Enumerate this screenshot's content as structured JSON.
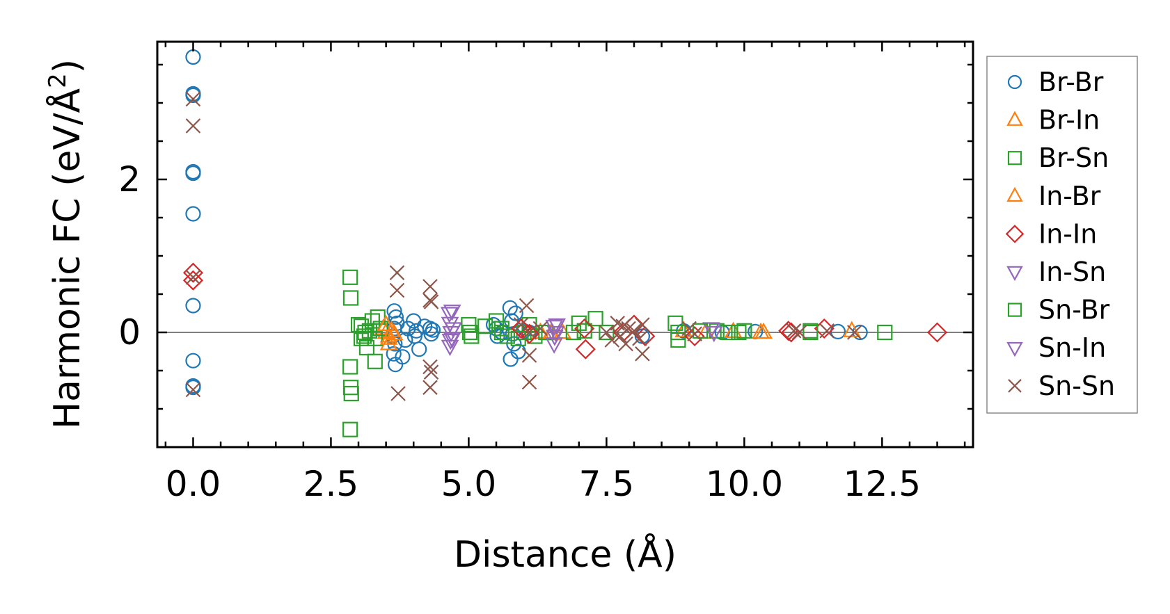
{
  "chart_data": {
    "type": "scatter",
    "xlabel": "Distance (Å)",
    "ylabel_main": "Harmonic FC (eV/Å",
    "ylabel_sup": "2",
    "ylabel_tail": ")",
    "xlim": [
      -0.65,
      14.15
    ],
    "ylim": [
      -1.5,
      3.8
    ],
    "xticks": [
      0.0,
      2.5,
      5.0,
      7.5,
      10.0,
      12.5
    ],
    "xtick_labels": [
      "0.0",
      "2.5",
      "5.0",
      "7.5",
      "10.0",
      "12.5"
    ],
    "yticks": [
      0,
      2
    ],
    "ytick_labels": [
      "0",
      "2"
    ],
    "zero_line": true,
    "grid": false,
    "legend_position": "right-outside",
    "series": [
      {
        "name": "Br-Br",
        "marker": "circle",
        "color": "#1f77b4",
        "points": [
          [
            0,
            3.6
          ],
          [
            0,
            3.12
          ],
          [
            0,
            3.1
          ],
          [
            0,
            2.1
          ],
          [
            0,
            2.08
          ],
          [
            0,
            1.55
          ],
          [
            0,
            0.35
          ],
          [
            0,
            -0.37
          ],
          [
            0,
            -0.7
          ],
          [
            0,
            -0.72
          ],
          [
            3.65,
            0.28
          ],
          [
            3.68,
            0.2
          ],
          [
            3.7,
            0.12
          ],
          [
            3.65,
            0.05
          ],
          [
            3.62,
            -0.05
          ],
          [
            3.66,
            -0.15
          ],
          [
            3.64,
            -0.28
          ],
          [
            3.67,
            -0.42
          ],
          [
            3.8,
            -0.32
          ],
          [
            3.85,
            -0.1
          ],
          [
            3.9,
            0.05
          ],
          [
            4.0,
            0.15
          ],
          [
            4.02,
            -0.05
          ],
          [
            4.05,
            0.02
          ],
          [
            4.1,
            -0.22
          ],
          [
            4.2,
            0.08
          ],
          [
            4.3,
            0.05
          ],
          [
            4.32,
            -0.02
          ],
          [
            4.35,
            0.03
          ],
          [
            5.45,
            0.1
          ],
          [
            5.5,
            0.05
          ],
          [
            5.52,
            -0.05
          ],
          [
            5.6,
            0.0
          ],
          [
            5.75,
            0.32
          ],
          [
            5.78,
            0.15
          ],
          [
            5.8,
            -0.02
          ],
          [
            5.82,
            -0.15
          ],
          [
            5.76,
            -0.35
          ],
          [
            5.85,
            0.25
          ],
          [
            5.9,
            -0.25
          ],
          [
            6.0,
            0.02
          ],
          [
            6.1,
            0.0
          ],
          [
            8.15,
            -0.05
          ],
          [
            8.9,
            0.02
          ],
          [
            9.6,
            0.0
          ],
          [
            10.2,
            0.01
          ],
          [
            11.7,
            0.01
          ],
          [
            12.1,
            0.0
          ]
        ]
      },
      {
        "name": "Br-In",
        "marker": "triangle-up",
        "color": "#ff7f0e",
        "points": [
          [
            3.45,
            0.05
          ],
          [
            3.5,
            0.0
          ],
          [
            3.55,
            -0.05
          ],
          [
            3.6,
            0.02
          ],
          [
            3.65,
            -0.02
          ],
          [
            3.55,
            -0.15
          ],
          [
            6.3,
            0.0
          ],
          [
            6.5,
            -0.02
          ],
          [
            6.7,
            0.0
          ],
          [
            8.9,
            0.02
          ],
          [
            9.3,
            0.0
          ],
          [
            9.8,
            0.01
          ],
          [
            10.3,
            0.0
          ],
          [
            11.95,
            0.02
          ]
        ]
      },
      {
        "name": "Br-Sn",
        "marker": "square",
        "color": "#2ca02c",
        "points": [
          [
            2.85,
            0.72
          ],
          [
            2.86,
            0.45
          ],
          [
            2.85,
            -0.45
          ],
          [
            2.86,
            -0.72
          ],
          [
            2.87,
            -0.8
          ],
          [
            2.85,
            -1.27
          ],
          [
            3.05,
            0.08
          ],
          [
            3.1,
            -0.05
          ],
          [
            3.15,
            -0.2
          ],
          [
            3.2,
            0.02
          ],
          [
            3.25,
            0.15
          ],
          [
            3.3,
            -0.08
          ],
          [
            3.3,
            -0.38
          ],
          [
            3.35,
            0.2
          ],
          [
            3.4,
            0.05
          ],
          [
            5.0,
            0.1
          ],
          [
            5.02,
            0.0
          ],
          [
            5.05,
            -0.05
          ],
          [
            5.3,
            0.08
          ],
          [
            5.5,
            0.15
          ],
          [
            5.6,
            0.0
          ],
          [
            5.7,
            -0.05
          ],
          [
            6.0,
            0.0
          ],
          [
            6.1,
            0.1
          ],
          [
            6.2,
            -0.05
          ],
          [
            6.4,
            0.0
          ],
          [
            7.0,
            0.12
          ],
          [
            7.1,
            0.02
          ],
          [
            7.3,
            0.18
          ],
          [
            7.5,
            0.0
          ],
          [
            8.75,
            0.12
          ],
          [
            8.8,
            0.0
          ],
          [
            8.8,
            -0.1
          ],
          [
            9.5,
            0.02
          ],
          [
            9.7,
            0.0
          ],
          [
            10.0,
            0.02
          ],
          [
            11.2,
            0.0
          ],
          [
            12.55,
            0.0
          ]
        ]
      },
      {
        "name": "In-Br",
        "marker": "triangle-up",
        "color": "#ff7f0e",
        "points": [
          [
            3.5,
            0.1
          ],
          [
            3.55,
            -0.08
          ],
          [
            6.5,
            0.0
          ],
          [
            10.35,
            0.0
          ]
        ]
      },
      {
        "name": "In-In",
        "marker": "diamond",
        "color": "#d62728",
        "points": [
          [
            0,
            0.78
          ],
          [
            0,
            0.68
          ],
          [
            5.95,
            0.05
          ],
          [
            6.1,
            -0.02
          ],
          [
            7.1,
            0.05
          ],
          [
            7.12,
            -0.22
          ],
          [
            7.8,
            0.0
          ],
          [
            8.0,
            0.1
          ],
          [
            8.2,
            -0.05
          ],
          [
            9.1,
            -0.05
          ],
          [
            10.8,
            0.02
          ],
          [
            10.85,
            0.0
          ],
          [
            11.45,
            0.05
          ],
          [
            13.5,
            0.0
          ]
        ]
      },
      {
        "name": "In-Sn",
        "marker": "triangle-down",
        "color": "#9467bd",
        "points": [
          [
            4.65,
            0.25
          ],
          [
            4.66,
            0.12
          ],
          [
            4.68,
            0.0
          ],
          [
            4.67,
            -0.1
          ],
          [
            4.66,
            -0.18
          ],
          [
            6.55,
            0.08
          ],
          [
            6.56,
            -0.05
          ],
          [
            6.55,
            -0.15
          ],
          [
            9.4,
            0.05
          ]
        ]
      },
      {
        "name": "Sn-Br",
        "marker": "square",
        "color": "#2ca02c",
        "points": [
          [
            3.0,
            0.1
          ],
          [
            3.05,
            -0.08
          ],
          [
            3.12,
            0.0
          ],
          [
            5.6,
            0.05
          ],
          [
            5.9,
            -0.08
          ],
          [
            6.9,
            0.0
          ],
          [
            9.2,
            0.02
          ],
          [
            9.9,
            0.0
          ],
          [
            11.2,
            0.02
          ]
        ]
      },
      {
        "name": "Sn-In",
        "marker": "triangle-down",
        "color": "#9467bd",
        "points": [
          [
            4.7,
            0.28
          ],
          [
            4.72,
            0.05
          ],
          [
            4.7,
            -0.08
          ],
          [
            6.6,
            0.1
          ],
          [
            6.58,
            0.0
          ],
          [
            9.45,
            0.0
          ]
        ]
      },
      {
        "name": "Sn-Sn",
        "marker": "x",
        "color": "#8c564b",
        "points": [
          [
            0,
            3.05
          ],
          [
            0,
            2.7
          ],
          [
            0,
            0.72
          ],
          [
            0,
            -0.75
          ],
          [
            3.7,
            0.78
          ],
          [
            3.7,
            0.55
          ],
          [
            3.72,
            -0.8
          ],
          [
            4.3,
            0.6
          ],
          [
            4.3,
            0.42
          ],
          [
            4.32,
            0.4
          ],
          [
            4.3,
            -0.45
          ],
          [
            4.32,
            -0.52
          ],
          [
            4.3,
            -0.72
          ],
          [
            5.95,
            0.1
          ],
          [
            6.05,
            0.35
          ],
          [
            6.1,
            0.0
          ],
          [
            6.1,
            -0.3
          ],
          [
            6.1,
            -0.65
          ],
          [
            6.3,
            0.05
          ],
          [
            7.5,
            0.0
          ],
          [
            7.6,
            -0.1
          ],
          [
            7.7,
            0.12
          ],
          [
            7.75,
            -0.05
          ],
          [
            7.8,
            0.08
          ],
          [
            7.85,
            -0.15
          ],
          [
            7.9,
            0.05
          ],
          [
            8.0,
            0.02
          ],
          [
            8.1,
            -0.08
          ],
          [
            8.15,
            0.1
          ],
          [
            8.15,
            -0.28
          ],
          [
            9.0,
            0.05
          ],
          [
            9.1,
            -0.02
          ],
          [
            10.9,
            0.02
          ],
          [
            11.0,
            0.0
          ],
          [
            11.5,
            0.02
          ],
          [
            12.0,
            0.0
          ]
        ]
      }
    ]
  }
}
